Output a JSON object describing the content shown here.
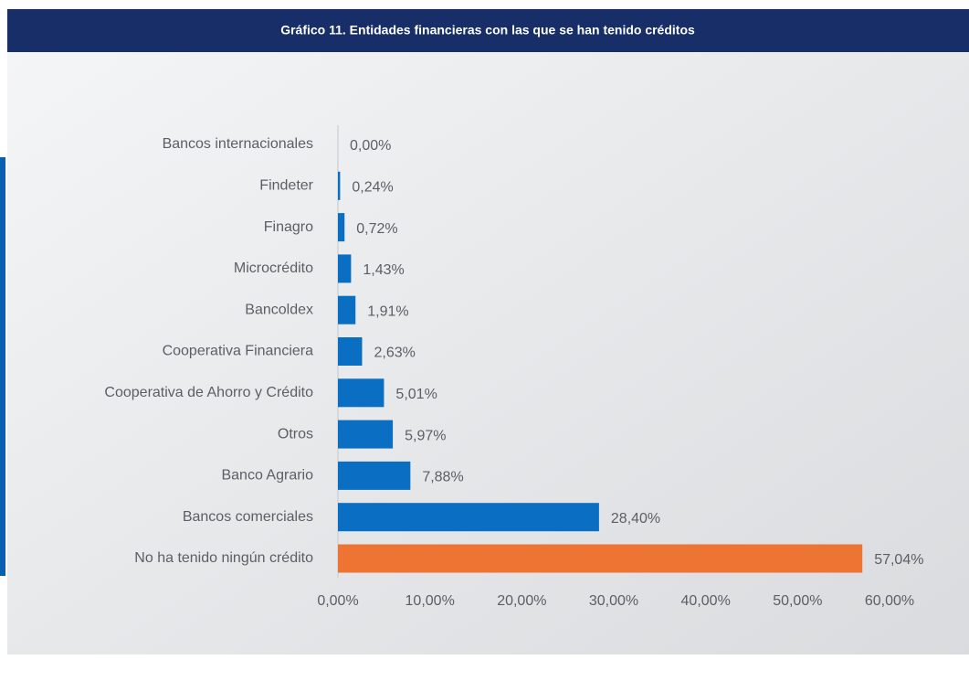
{
  "chart_data": {
    "type": "hbar",
    "title": "Gráfico 11. Entidades financieras con las que se han tenido créditos",
    "categories": [
      "Bancos internacionales",
      "Findeter",
      "Finagro",
      "Microcrédito",
      "Bancoldex",
      "Cooperativa Financiera",
      "Cooperativa de Ahorro y Crédito",
      "Otros",
      "Banco Agrario",
      "Bancos comerciales",
      "No ha tenido ningún crédito"
    ],
    "values": [
      0.0,
      0.24,
      0.72,
      1.43,
      1.91,
      2.63,
      5.01,
      5.97,
      7.88,
      28.4,
      57.04
    ],
    "value_labels": [
      "0,00%",
      "0,24%",
      "0,72%",
      "1,43%",
      "1,91%",
      "2,63%",
      "5,01%",
      "5,97%",
      "7,88%",
      "28,40%",
      "57,04%"
    ],
    "colors": [
      "#0a6fc2",
      "#0a6fc2",
      "#0a6fc2",
      "#0a6fc2",
      "#0a6fc2",
      "#0a6fc2",
      "#0a6fc2",
      "#0a6fc2",
      "#0a6fc2",
      "#0a6fc2",
      "#ed7433"
    ],
    "xlim": [
      0,
      60
    ],
    "xticks": [
      {
        "value": 0,
        "label": "0,00%"
      },
      {
        "value": 10,
        "label": "10,00%"
      },
      {
        "value": 20,
        "label": "20,00%"
      },
      {
        "value": 30,
        "label": "30,00%"
      },
      {
        "value": 40,
        "label": "40,00%"
      },
      {
        "value": 50,
        "label": "50,00%"
      },
      {
        "value": 60,
        "label": "60,00%"
      }
    ],
    "grid": false
  }
}
